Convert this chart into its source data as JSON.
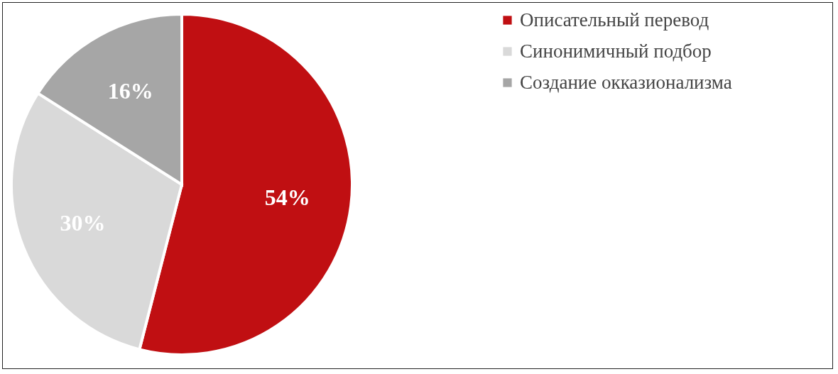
{
  "chart_data": {
    "type": "pie",
    "categories": [
      "Описательный перевод",
      "Синонимичный подбор",
      "Создание окказионализма"
    ],
    "values": [
      54,
      30,
      16
    ],
    "colors": [
      "#c00f12",
      "#d9d9d9",
      "#a6a6a6"
    ],
    "value_labels": [
      "54%",
      "30%",
      "16%"
    ],
    "legend": "right"
  }
}
